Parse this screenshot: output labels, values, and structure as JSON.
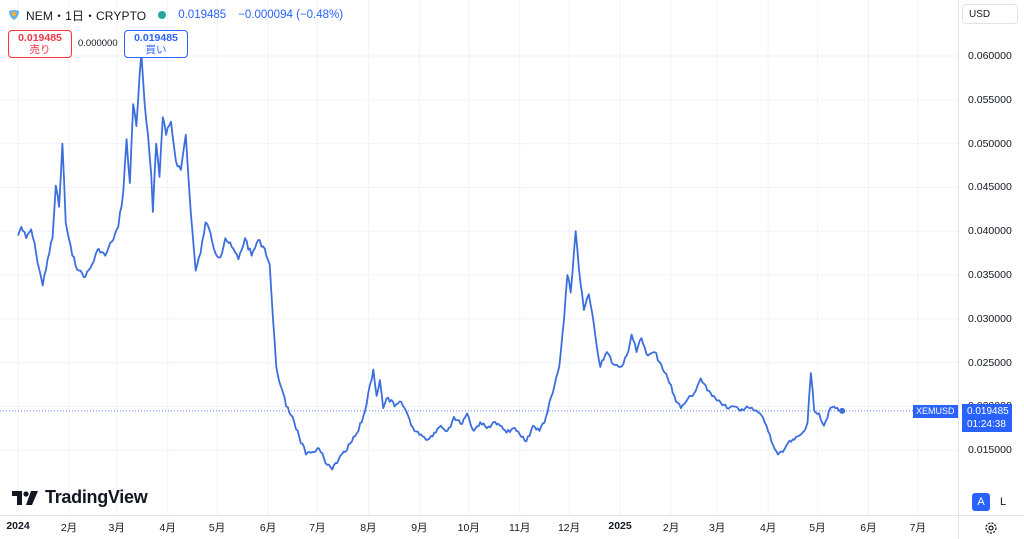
{
  "header": {
    "symbol_title": "NEM・1日・CRYPTO",
    "last": "0.019485",
    "change": "−0.000094 (−0.48%)"
  },
  "trade": {
    "sell_price": "0.019485",
    "sell_label": "売り",
    "spread": "0.000000",
    "buy_price": "0.019485",
    "buy_label": "買い"
  },
  "currency": "USD",
  "price_tag": {
    "symbol": "XEMUSD",
    "price": "0.019485",
    "countdown": "01:24:38"
  },
  "logo_text": "TradingView",
  "scale_buttons": {
    "auto": "A",
    "log": "L"
  },
  "colors": {
    "line": "#3c6ede",
    "accent": "#2962ff",
    "sell": "#f23645",
    "up_dot": "#26a69a"
  },
  "chart_data": {
    "type": "line",
    "series": [
      {
        "name": "XEMUSD"
      }
    ],
    "ylim": [
      0.01,
      0.065
    ],
    "y_ticks": [
      {
        "v": 0.06,
        "label": "0.060000"
      },
      {
        "v": 0.055,
        "label": "0.055000"
      },
      {
        "v": 0.05,
        "label": "0.050000"
      },
      {
        "v": 0.045,
        "label": "0.045000"
      },
      {
        "v": 0.04,
        "label": "0.040000"
      },
      {
        "v": 0.035,
        "label": "0.035000"
      },
      {
        "v": 0.03,
        "label": "0.030000"
      },
      {
        "v": 0.025,
        "label": "0.025000"
      },
      {
        "v": 0.02,
        "label": "0.020000"
      },
      {
        "v": 0.015,
        "label": "0.015000"
      }
    ],
    "x_ticks": [
      {
        "d": "2024-01-01",
        "label": "2024",
        "bold": true
      },
      {
        "d": "2024-02-01",
        "label": "2月"
      },
      {
        "d": "2024-03-01",
        "label": "3月"
      },
      {
        "d": "2024-04-01",
        "label": "4月"
      },
      {
        "d": "2024-05-01",
        "label": "5月"
      },
      {
        "d": "2024-06-01",
        "label": "6月"
      },
      {
        "d": "2024-07-01",
        "label": "7月"
      },
      {
        "d": "2024-08-01",
        "label": "8月"
      },
      {
        "d": "2024-09-01",
        "label": "9月"
      },
      {
        "d": "2024-10-01",
        "label": "10月"
      },
      {
        "d": "2024-11-01",
        "label": "11月"
      },
      {
        "d": "2024-12-01",
        "label": "12月"
      },
      {
        "d": "2025-01-01",
        "label": "2025",
        "bold": true
      },
      {
        "d": "2025-02-01",
        "label": "2月"
      },
      {
        "d": "2025-03-01",
        "label": "3月"
      },
      {
        "d": "2025-04-01",
        "label": "4月"
      },
      {
        "d": "2025-05-01",
        "label": "5月"
      },
      {
        "d": "2025-06-01",
        "label": "6月"
      },
      {
        "d": "2025-07-01",
        "label": "7月"
      }
    ],
    "points": [
      [
        "2024-01-01",
        0.0395
      ],
      [
        "2024-01-03",
        0.0405
      ],
      [
        "2024-01-06",
        0.0392
      ],
      [
        "2024-01-09",
        0.0402
      ],
      [
        "2024-01-12",
        0.0375
      ],
      [
        "2024-01-16",
        0.0338
      ],
      [
        "2024-01-19",
        0.0368
      ],
      [
        "2024-01-22",
        0.0392
      ],
      [
        "2024-01-24",
        0.0452
      ],
      [
        "2024-01-26",
        0.0428
      ],
      [
        "2024-01-28",
        0.05
      ],
      [
        "2024-01-30",
        0.041
      ],
      [
        "2024-02-03",
        0.0372
      ],
      [
        "2024-02-07",
        0.0355
      ],
      [
        "2024-02-11",
        0.0348
      ],
      [
        "2024-02-15",
        0.0362
      ],
      [
        "2024-02-19",
        0.038
      ],
      [
        "2024-02-23",
        0.0372
      ],
      [
        "2024-02-27",
        0.0388
      ],
      [
        "2024-03-02",
        0.0405
      ],
      [
        "2024-03-05",
        0.0445
      ],
      [
        "2024-03-07",
        0.0505
      ],
      [
        "2024-03-09",
        0.0455
      ],
      [
        "2024-03-11",
        0.0545
      ],
      [
        "2024-03-13",
        0.052
      ],
      [
        "2024-03-15",
        0.058
      ],
      [
        "2024-03-16",
        0.0602
      ],
      [
        "2024-03-18",
        0.0545
      ],
      [
        "2024-03-20",
        0.051
      ],
      [
        "2024-03-22",
        0.0465
      ],
      [
        "2024-03-23",
        0.0422
      ],
      [
        "2024-03-25",
        0.05
      ],
      [
        "2024-03-27",
        0.0462
      ],
      [
        "2024-03-29",
        0.053
      ],
      [
        "2024-03-31",
        0.051
      ],
      [
        "2024-04-03",
        0.0525
      ],
      [
        "2024-04-06",
        0.048
      ],
      [
        "2024-04-09",
        0.047
      ],
      [
        "2024-04-12",
        0.051
      ],
      [
        "2024-04-14",
        0.045
      ],
      [
        "2024-04-16",
        0.04
      ],
      [
        "2024-04-18",
        0.0355
      ],
      [
        "2024-04-21",
        0.0375
      ],
      [
        "2024-04-24",
        0.041
      ],
      [
        "2024-04-27",
        0.0398
      ],
      [
        "2024-04-30",
        0.0375
      ],
      [
        "2024-05-03",
        0.037
      ],
      [
        "2024-05-06",
        0.0392
      ],
      [
        "2024-05-10",
        0.0382
      ],
      [
        "2024-05-14",
        0.0368
      ],
      [
        "2024-05-18",
        0.0392
      ],
      [
        "2024-05-22",
        0.0372
      ],
      [
        "2024-05-26",
        0.039
      ],
      [
        "2024-05-30",
        0.038
      ],
      [
        "2024-06-02",
        0.0362
      ],
      [
        "2024-06-04",
        0.03
      ],
      [
        "2024-06-06",
        0.0245
      ],
      [
        "2024-06-09",
        0.0222
      ],
      [
        "2024-06-12",
        0.02
      ],
      [
        "2024-06-16",
        0.0188
      ],
      [
        "2024-06-20",
        0.0165
      ],
      [
        "2024-06-24",
        0.0145
      ],
      [
        "2024-06-28",
        0.0148
      ],
      [
        "2024-07-02",
        0.0152
      ],
      [
        "2024-07-06",
        0.0135
      ],
      [
        "2024-07-10",
        0.0128
      ],
      [
        "2024-07-14",
        0.014
      ],
      [
        "2024-07-18",
        0.0148
      ],
      [
        "2024-07-22",
        0.016
      ],
      [
        "2024-07-26",
        0.0172
      ],
      [
        "2024-07-30",
        0.0195
      ],
      [
        "2024-08-02",
        0.0225
      ],
      [
        "2024-08-04",
        0.0242
      ],
      [
        "2024-08-06",
        0.0212
      ],
      [
        "2024-08-08",
        0.023
      ],
      [
        "2024-08-10",
        0.0198
      ],
      [
        "2024-08-13",
        0.021
      ],
      [
        "2024-08-17",
        0.02
      ],
      [
        "2024-08-21",
        0.0205
      ],
      [
        "2024-08-25",
        0.019
      ],
      [
        "2024-08-29",
        0.0172
      ],
      [
        "2024-09-02",
        0.0168
      ],
      [
        "2024-09-06",
        0.0162
      ],
      [
        "2024-09-10",
        0.017
      ],
      [
        "2024-09-14",
        0.0178
      ],
      [
        "2024-09-18",
        0.0172
      ],
      [
        "2024-09-22",
        0.0188
      ],
      [
        "2024-09-26",
        0.018
      ],
      [
        "2024-09-30",
        0.0192
      ],
      [
        "2024-10-04",
        0.0172
      ],
      [
        "2024-10-08",
        0.0182
      ],
      [
        "2024-10-12",
        0.0175
      ],
      [
        "2024-10-16",
        0.0182
      ],
      [
        "2024-10-20",
        0.0178
      ],
      [
        "2024-10-24",
        0.017
      ],
      [
        "2024-10-28",
        0.0175
      ],
      [
        "2024-11-01",
        0.0168
      ],
      [
        "2024-11-05",
        0.016
      ],
      [
        "2024-11-09",
        0.0178
      ],
      [
        "2024-11-13",
        0.0172
      ],
      [
        "2024-11-17",
        0.0188
      ],
      [
        "2024-11-21",
        0.0215
      ],
      [
        "2024-11-25",
        0.0245
      ],
      [
        "2024-11-28",
        0.03
      ],
      [
        "2024-11-30",
        0.035
      ],
      [
        "2024-12-02",
        0.033
      ],
      [
        "2024-12-05",
        0.04
      ],
      [
        "2024-12-08",
        0.034
      ],
      [
        "2024-12-10",
        0.031
      ],
      [
        "2024-12-13",
        0.0328
      ],
      [
        "2024-12-17",
        0.028
      ],
      [
        "2024-12-20",
        0.0245
      ],
      [
        "2024-12-24",
        0.0262
      ],
      [
        "2024-12-28",
        0.0248
      ],
      [
        "2025-01-01",
        0.0245
      ],
      [
        "2025-01-05",
        0.0258
      ],
      [
        "2025-01-08",
        0.0282
      ],
      [
        "2025-01-11",
        0.0262
      ],
      [
        "2025-01-14",
        0.0278
      ],
      [
        "2025-01-18",
        0.0258
      ],
      [
        "2025-01-22",
        0.0262
      ],
      [
        "2025-01-26",
        0.0248
      ],
      [
        "2025-01-30",
        0.0232
      ],
      [
        "2025-02-03",
        0.0212
      ],
      [
        "2025-02-07",
        0.0198
      ],
      [
        "2025-02-11",
        0.0208
      ],
      [
        "2025-02-15",
        0.0215
      ],
      [
        "2025-02-19",
        0.0232
      ],
      [
        "2025-02-23",
        0.0218
      ],
      [
        "2025-02-27",
        0.0212
      ],
      [
        "2025-03-03",
        0.0205
      ],
      [
        "2025-03-07",
        0.0198
      ],
      [
        "2025-03-11",
        0.02
      ],
      [
        "2025-03-15",
        0.0195
      ],
      [
        "2025-03-19",
        0.02
      ],
      [
        "2025-03-23",
        0.0196
      ],
      [
        "2025-03-27",
        0.0192
      ],
      [
        "2025-03-31",
        0.0178
      ],
      [
        "2025-04-03",
        0.016
      ],
      [
        "2025-04-07",
        0.0145
      ],
      [
        "2025-04-10",
        0.0148
      ],
      [
        "2025-04-13",
        0.0158
      ],
      [
        "2025-04-17",
        0.0162
      ],
      [
        "2025-04-21",
        0.0168
      ],
      [
        "2025-04-25",
        0.0182
      ],
      [
        "2025-04-27",
        0.0238
      ],
      [
        "2025-04-29",
        0.0195
      ],
      [
        "2025-05-02",
        0.0192
      ],
      [
        "2025-05-05",
        0.0178
      ],
      [
        "2025-05-08",
        0.0195
      ],
      [
        "2025-05-11",
        0.02
      ],
      [
        "2025-05-14",
        0.0195
      ],
      [
        "2025-05-16",
        0.019485
      ]
    ]
  }
}
